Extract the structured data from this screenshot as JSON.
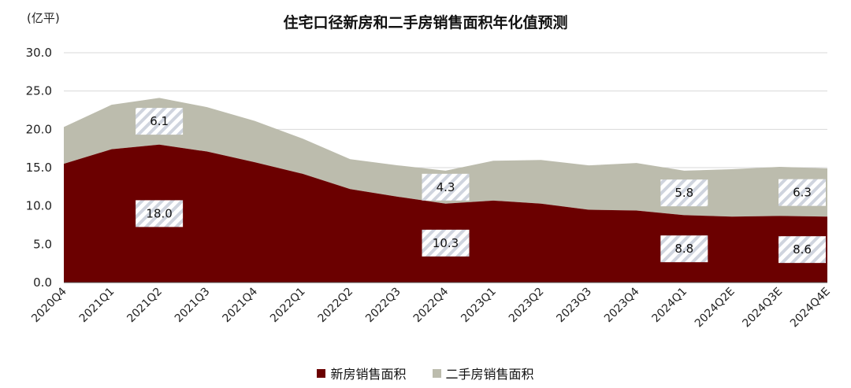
{
  "chart_data": {
    "type": "area",
    "stacked": true,
    "title": "住宅口径新房和二手房销售面积年化值预测",
    "unit": "(亿平)",
    "categories": [
      "2020Q4",
      "2021Q1",
      "2021Q2",
      "2021Q3",
      "2021Q4",
      "2022Q1",
      "2022Q2",
      "2022Q3",
      "2022Q4",
      "2023Q1",
      "2023Q2",
      "2023Q3",
      "2023Q4",
      "2024Q1",
      "2024Q2E",
      "2024Q3E",
      "2024Q4E"
    ],
    "ylim": [
      0,
      30
    ],
    "yticks": [
      "0.0",
      "5.0",
      "10.0",
      "15.0",
      "20.0",
      "25.0",
      "30.0"
    ],
    "grid": true,
    "legend_position": "bottom",
    "series": [
      {
        "name": "新房销售面积",
        "color": "#6b0000",
        "values": [
          15.5,
          17.4,
          18.0,
          17.1,
          15.7,
          14.2,
          12.2,
          11.2,
          10.3,
          10.7,
          10.3,
          9.5,
          9.4,
          8.8,
          8.6,
          8.7,
          8.6
        ]
      },
      {
        "name": "二手房销售面积",
        "color": "#bcbcad",
        "values": [
          4.8,
          5.8,
          6.1,
          5.8,
          5.4,
          4.6,
          3.9,
          4.1,
          4.3,
          5.2,
          5.7,
          5.8,
          6.2,
          5.8,
          6.2,
          6.4,
          6.3
        ]
      }
    ],
    "data_labels": [
      {
        "series": 1,
        "index": 2,
        "text": "6.1"
      },
      {
        "series": 0,
        "index": 2,
        "text": "18.0"
      },
      {
        "series": 1,
        "index": 8,
        "text": "4.3"
      },
      {
        "series": 0,
        "index": 8,
        "text": "10.3"
      },
      {
        "series": 1,
        "index": 13,
        "text": "5.8"
      },
      {
        "series": 0,
        "index": 13,
        "text": "8.8"
      },
      {
        "series": 1,
        "index": 16,
        "text": "6.3"
      },
      {
        "series": 0,
        "index": 16,
        "text": "8.6"
      }
    ]
  }
}
